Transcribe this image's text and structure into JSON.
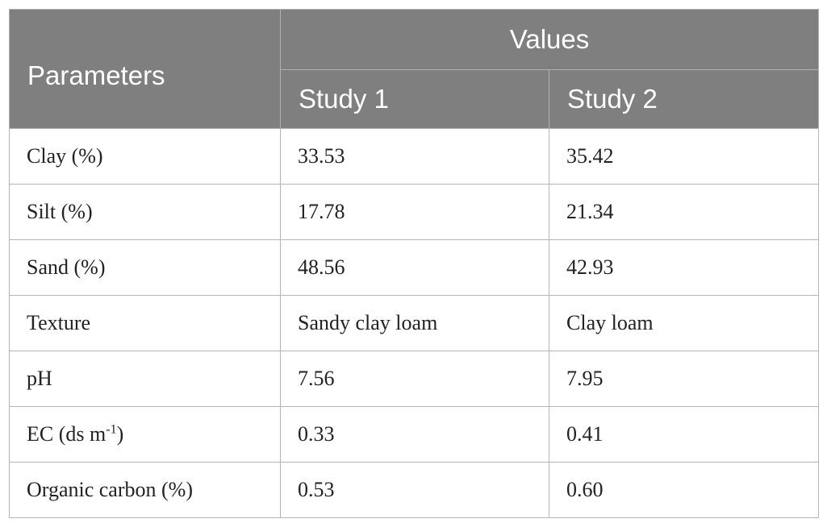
{
  "header": {
    "parameters": "Parameters",
    "values": "Values",
    "study1": "Study 1",
    "study2": "Study 2"
  },
  "rows": [
    {
      "parameter": "Clay (%)",
      "study1": "33.53",
      "study2": "35.42"
    },
    {
      "parameter": "Silt (%)",
      "study1": "17.78",
      "study2": "21.34"
    },
    {
      "parameter": "Sand (%)",
      "study1": "48.56",
      "study2": "42.93"
    },
    {
      "parameter": "Texture",
      "study1": "Sandy clay loam",
      "study2": "Clay loam"
    },
    {
      "parameter": "pH",
      "study1": "7.56",
      "study2": "7.95"
    },
    {
      "parameter_prefix": "EC (ds m",
      "parameter_sup": "-1",
      "parameter_suffix": ")",
      "study1": "0.33",
      "study2": "0.41"
    },
    {
      "parameter": "Organic carbon (%)",
      "study1": "0.53",
      "study2": "0.60"
    }
  ]
}
